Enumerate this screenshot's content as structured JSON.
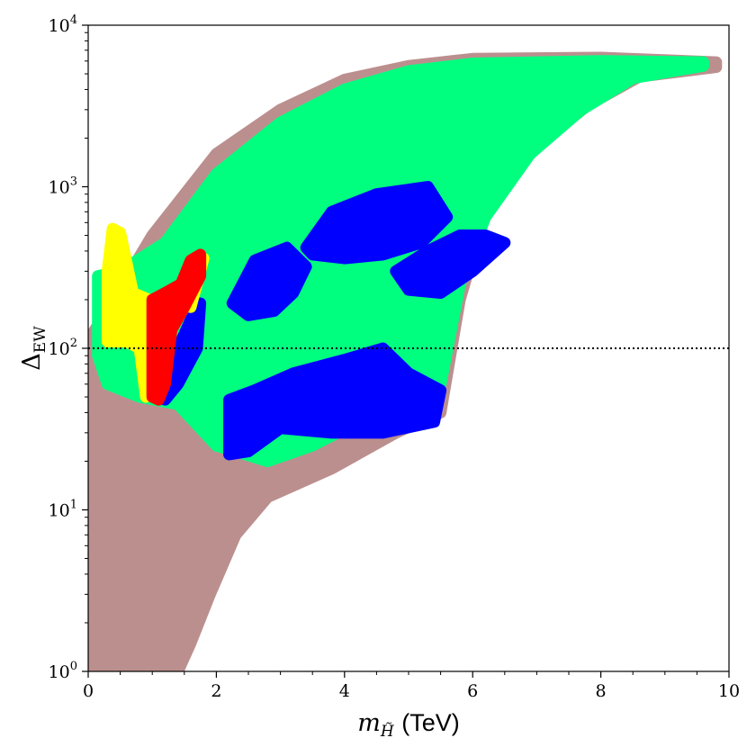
{
  "chart_data": {
    "type": "scatter",
    "title": "",
    "xlabel": {
      "main": "m",
      "sub": "H̃",
      "unit": "(TeV)"
    },
    "ylabel": {
      "main": "Δ",
      "sub": "EW"
    },
    "x_axis": {
      "scale": "linear",
      "range": [
        0,
        10
      ],
      "ticks": [
        0,
        2,
        4,
        6,
        8,
        10
      ],
      "tick_labels": [
        "0",
        "2",
        "4",
        "6",
        "8",
        "10"
      ]
    },
    "y_axis": {
      "scale": "log",
      "range": [
        1,
        10000
      ],
      "ticks": [
        1,
        10,
        100,
        1000,
        10000
      ],
      "tick_labels": [
        {
          "base": "10",
          "exp": "0"
        },
        {
          "base": "10",
          "exp": "1"
        },
        {
          "base": "10",
          "exp": "2"
        },
        {
          "base": "10",
          "exp": "3"
        },
        {
          "base": "10",
          "exp": "4"
        }
      ]
    },
    "grid": false,
    "legend": "none",
    "reference_lines": [
      {
        "orientation": "horizontal",
        "y": 100,
        "style": "dotted",
        "color": "#000000"
      }
    ],
    "series": [
      {
        "color": "#bc8f8f",
        "regions": [
          [
            [
              0.05,
              1
            ],
            [
              0.05,
              120
            ],
            [
              0.4,
              200
            ],
            [
              1.0,
              500
            ],
            [
              2.0,
              1600
            ],
            [
              3.0,
              3000
            ],
            [
              4.0,
              4600
            ],
            [
              5.0,
              5600
            ],
            [
              6.0,
              6200
            ],
            [
              8.0,
              6300
            ],
            [
              9.8,
              5900
            ],
            [
              9.8,
              5500
            ],
            [
              8.6,
              4800
            ],
            [
              7.8,
              3200
            ],
            [
              7.0,
              1800
            ],
            [
              6.2,
              700
            ],
            [
              5.8,
              200
            ],
            [
              5.5,
              40
            ],
            [
              4.8,
              30
            ],
            [
              3.8,
              18
            ],
            [
              2.8,
              12
            ],
            [
              2.3,
              7
            ],
            [
              1.9,
              3
            ],
            [
              1.6,
              1.5
            ],
            [
              1.4,
              1
            ]
          ]
        ]
      },
      {
        "color": "#00ff7f",
        "regions": [
          [
            [
              0.15,
              90
            ],
            [
              0.15,
              280
            ],
            [
              0.5,
              300
            ],
            [
              1.2,
              450
            ],
            [
              2.0,
              1200
            ],
            [
              3.0,
              2500
            ],
            [
              4.0,
              4000
            ],
            [
              5.0,
              5200
            ],
            [
              6.0,
              5800
            ],
            [
              8.0,
              6000
            ],
            [
              9.6,
              5900
            ],
            [
              9.6,
              5600
            ],
            [
              8.5,
              4700
            ],
            [
              7.7,
              3000
            ],
            [
              6.9,
              1600
            ],
            [
              6.2,
              650
            ],
            [
              5.8,
              250
            ],
            [
              5.5,
              60
            ],
            [
              4.5,
              40
            ],
            [
              3.5,
              25
            ],
            [
              2.8,
              20
            ],
            [
              2.0,
              25
            ],
            [
              1.4,
              45
            ],
            [
              0.8,
              50
            ],
            [
              0.3,
              60
            ]
          ]
        ]
      },
      {
        "color": "#0000ff",
        "regions": [
          [
            [
              2.2,
              48
            ],
            [
              2.6,
              55
            ],
            [
              3.2,
              70
            ],
            [
              4.0,
              85
            ],
            [
              4.6,
              100
            ],
            [
              5.0,
              70
            ],
            [
              5.5,
              55
            ],
            [
              5.4,
              35
            ],
            [
              4.6,
              30
            ],
            [
              3.8,
              30
            ],
            [
              3.0,
              32
            ],
            [
              2.5,
              23
            ],
            [
              2.2,
              22
            ]
          ],
          [
            [
              2.25,
              190
            ],
            [
              2.6,
              350
            ],
            [
              3.1,
              420
            ],
            [
              3.4,
              320
            ],
            [
              3.2,
              220
            ],
            [
              2.9,
              170
            ],
            [
              2.5,
              160
            ]
          ],
          [
            [
              3.4,
              420
            ],
            [
              3.8,
              700
            ],
            [
              4.5,
              900
            ],
            [
              5.3,
              1000
            ],
            [
              5.6,
              650
            ],
            [
              5.2,
              450
            ],
            [
              4.6,
              380
            ],
            [
              4.0,
              360
            ],
            [
              3.5,
              380
            ]
          ],
          [
            [
              4.8,
              300
            ],
            [
              5.3,
              400
            ],
            [
              5.8,
              500
            ],
            [
              6.2,
              500
            ],
            [
              6.5,
              450
            ],
            [
              6.0,
              300
            ],
            [
              5.5,
              220
            ],
            [
              5.0,
              230
            ]
          ],
          [
            [
              1.1,
              50
            ],
            [
              1.4,
              100
            ],
            [
              1.6,
              150
            ],
            [
              1.75,
              190
            ],
            [
              1.7,
              100
            ],
            [
              1.4,
              60
            ],
            [
              1.2,
              48
            ]
          ]
        ]
      },
      {
        "color": "#ffff00",
        "regions": [
          [
            [
              0.3,
              110
            ],
            [
              0.3,
              300
            ],
            [
              0.38,
              550
            ],
            [
              0.5,
              520
            ],
            [
              0.7,
              220
            ],
            [
              0.95,
              200
            ],
            [
              1.1,
              180
            ],
            [
              1.1,
              80
            ],
            [
              1.0,
              55
            ],
            [
              0.9,
              50
            ],
            [
              0.8,
              100
            ],
            [
              0.6,
              110
            ]
          ],
          [
            [
              1.4,
              200
            ],
            [
              1.7,
              370
            ],
            [
              1.8,
              360
            ],
            [
              1.6,
              180
            ]
          ]
        ]
      },
      {
        "color": "#ff0000",
        "regions": [
          [
            [
              1.0,
              50
            ],
            [
              1.0,
              200
            ],
            [
              1.2,
              220
            ],
            [
              1.45,
              250
            ],
            [
              1.6,
              350
            ],
            [
              1.75,
              380
            ],
            [
              1.75,
              280
            ],
            [
              1.5,
              180
            ],
            [
              1.3,
              130
            ],
            [
              1.2,
              60
            ],
            [
              1.1,
              48
            ]
          ]
        ]
      }
    ]
  }
}
